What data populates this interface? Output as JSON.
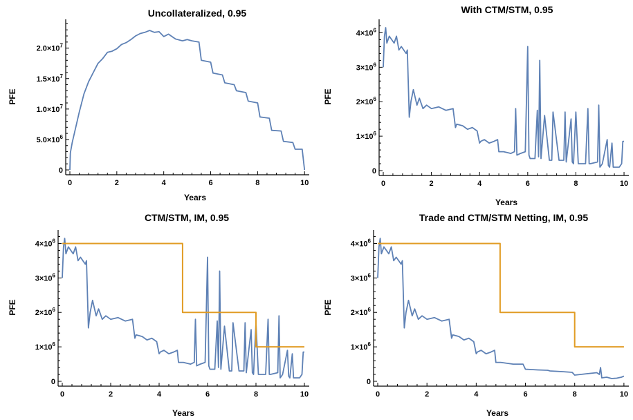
{
  "figure": {
    "colors": {
      "series": "#5E81B5",
      "limit": "#E19C24",
      "axis": "#000000",
      "background": "#FFFFFF"
    }
  },
  "chart_data": [
    {
      "type": "line",
      "title": "Uncollateralized, 0.95",
      "xlabel": "Years",
      "ylabel": "PFE",
      "xlim": [
        0,
        10.2
      ],
      "ylim": [
        0,
        24500000
      ],
      "xticks": [
        0,
        2,
        4,
        6,
        8,
        10
      ],
      "xtick_labels": [
        "0",
        "2",
        "4",
        "6",
        "8",
        "10"
      ],
      "yticks": [
        {
          "value": 0,
          "mant": "0",
          "exp": ""
        },
        {
          "value": 5000000,
          "mant": "5.0×10",
          "exp": "6"
        },
        {
          "value": 10000000,
          "mant": "1.0×10",
          "exp": "7"
        },
        {
          "value": 15000000,
          "mant": "1.5×10",
          "exp": "7"
        },
        {
          "value": 20000000,
          "mant": "2.0×10",
          "exp": "7"
        }
      ],
      "series": [
        {
          "x": [
            0,
            0.02,
            0.1,
            0.25,
            0.4,
            0.6,
            0.8,
            1.0,
            1.2,
            1.4,
            1.6,
            1.8,
            2.0,
            2.2,
            2.4,
            2.6,
            2.8,
            3.0,
            3.2,
            3.4,
            3.6,
            3.8,
            4.0,
            4.2,
            4.5,
            4.8,
            5.0,
            5.2,
            5.5,
            5.6,
            6.0,
            6.1,
            6.5,
            6.6,
            7.0,
            7.1,
            7.5,
            7.6,
            8.0,
            8.1,
            8.5,
            8.6,
            9.0,
            9.1,
            9.5,
            9.6,
            9.9,
            10.0
          ],
          "y": [
            0,
            2800000,
            4500000,
            7000000,
            9500000,
            12500000,
            14500000,
            16000000,
            17500000,
            18300000,
            19300000,
            19500000,
            19900000,
            20600000,
            20900000,
            21400000,
            22000000,
            22400000,
            22600000,
            22900000,
            22600000,
            22700000,
            21900000,
            22300000,
            21500000,
            21200000,
            21400000,
            21200000,
            21000000,
            18000000,
            17700000,
            15900000,
            15600000,
            14300000,
            14000000,
            13000000,
            12700000,
            11300000,
            11000000,
            8700000,
            8500000,
            6500000,
            6400000,
            4700000,
            4500000,
            3400000,
            3400000,
            0
          ]
        }
      ]
    },
    {
      "type": "line",
      "title": "With CTM/STM, 0.95",
      "xlabel": "Years",
      "ylabel": "PFE",
      "xlim": [
        0,
        10.2
      ],
      "ylim": [
        0,
        4350000
      ],
      "xticks": [
        0,
        2,
        4,
        6,
        8,
        10
      ],
      "xtick_labels": [
        "0",
        "2",
        "4",
        "6",
        "8",
        "10"
      ],
      "yticks": [
        {
          "value": 0,
          "mant": "0",
          "exp": ""
        },
        {
          "value": 1000000,
          "mant": "1×10",
          "exp": "6"
        },
        {
          "value": 2000000,
          "mant": "2×10",
          "exp": "6"
        },
        {
          "value": 3000000,
          "mant": "3×10",
          "exp": "6"
        },
        {
          "value": 4000000,
          "mant": "4×10",
          "exp": "6"
        }
      ],
      "series": [
        {
          "x": [
            0,
            0.05,
            0.1,
            0.15,
            0.25,
            0.35,
            0.45,
            0.55,
            0.65,
            0.75,
            0.85,
            0.95,
            1.0,
            1.08,
            1.15,
            1.25,
            1.4,
            1.5,
            1.65,
            1.8,
            2.0,
            2.3,
            2.6,
            2.9,
            3.0,
            3.05,
            3.3,
            3.5,
            3.7,
            3.9,
            4.0,
            4.05,
            4.2,
            4.4,
            4.6,
            4.75,
            4.8,
            5.0,
            5.3,
            5.45,
            5.5,
            5.55,
            5.7,
            5.9,
            6.0,
            6.05,
            6.1,
            6.3,
            6.4,
            6.45,
            6.5,
            6.55,
            6.7,
            6.9,
            7.0,
            7.05,
            7.3,
            7.5,
            7.55,
            7.6,
            7.8,
            7.85,
            7.9,
            8.0,
            8.1,
            8.4,
            8.5,
            8.55,
            8.6,
            8.9,
            8.95,
            9.0,
            9.05,
            9.1,
            9.3,
            9.35,
            9.4,
            9.5,
            9.55,
            9.6,
            9.8,
            9.9,
            9.95,
            10.0
          ],
          "y": [
            3000000,
            3900000,
            4150000,
            3700000,
            3900000,
            3800000,
            3700000,
            3900000,
            3500000,
            3600000,
            3500000,
            3400000,
            3500000,
            1550000,
            2000000,
            2350000,
            1900000,
            2100000,
            1800000,
            1900000,
            1800000,
            1850000,
            1750000,
            1800000,
            1250000,
            1350000,
            1300000,
            1200000,
            1250000,
            1150000,
            800000,
            850000,
            900000,
            800000,
            850000,
            900000,
            550000,
            550000,
            500000,
            550000,
            1800000,
            450000,
            500000,
            550000,
            3600000,
            450000,
            350000,
            350000,
            1750000,
            400000,
            3200000,
            350000,
            1600000,
            300000,
            300000,
            1700000,
            300000,
            300000,
            1700000,
            250000,
            1500000,
            250000,
            200000,
            1700000,
            200000,
            200000,
            1800000,
            200000,
            200000,
            250000,
            1900000,
            100000,
            150000,
            200000,
            900000,
            150000,
            100000,
            800000,
            100000,
            100000,
            100000,
            200000,
            850000,
            850000
          ]
        }
      ]
    },
    {
      "type": "line",
      "title": "CTM/STM, IM, 0.95",
      "xlabel": "Years",
      "ylabel": "PFE",
      "xlim": [
        0,
        10.2
      ],
      "ylim": [
        0,
        4350000
      ],
      "xticks": [
        0,
        2,
        4,
        6,
        8,
        10
      ],
      "xtick_labels": [
        "0",
        "2",
        "4",
        "6",
        "8",
        "10"
      ],
      "yticks": [
        {
          "value": 0,
          "mant": "0",
          "exp": ""
        },
        {
          "value": 1000000,
          "mant": "1×10",
          "exp": "6"
        },
        {
          "value": 2000000,
          "mant": "2×10",
          "exp": "6"
        },
        {
          "value": 3000000,
          "mant": "3×10",
          "exp": "6"
        },
        {
          "value": 4000000,
          "mant": "4×10",
          "exp": "6"
        }
      ],
      "series": [
        {
          "x": [
            0,
            0.05,
            0.1,
            0.15,
            0.25,
            0.35,
            0.45,
            0.55,
            0.65,
            0.75,
            0.85,
            0.95,
            1.0,
            1.08,
            1.15,
            1.25,
            1.4,
            1.5,
            1.65,
            1.8,
            2.0,
            2.3,
            2.6,
            2.9,
            3.0,
            3.05,
            3.3,
            3.5,
            3.7,
            3.9,
            4.0,
            4.05,
            4.2,
            4.4,
            4.6,
            4.75,
            4.8,
            5.0,
            5.3,
            5.45,
            5.5,
            5.55,
            5.7,
            5.9,
            6.0,
            6.05,
            6.1,
            6.3,
            6.4,
            6.45,
            6.5,
            6.55,
            6.7,
            6.9,
            7.0,
            7.05,
            7.3,
            7.5,
            7.55,
            7.6,
            7.8,
            7.85,
            7.9,
            8.0,
            8.1,
            8.4,
            8.5,
            8.55,
            8.6,
            8.9,
            8.95,
            9.0,
            9.05,
            9.1,
            9.3,
            9.35,
            9.4,
            9.5,
            9.55,
            9.6,
            9.8,
            9.9,
            9.95,
            10.0
          ],
          "y": [
            3000000,
            3900000,
            4150000,
            3700000,
            3900000,
            3800000,
            3700000,
            3900000,
            3500000,
            3600000,
            3500000,
            3400000,
            3500000,
            1550000,
            2000000,
            2350000,
            1900000,
            2100000,
            1800000,
            1900000,
            1800000,
            1850000,
            1750000,
            1800000,
            1250000,
            1350000,
            1300000,
            1200000,
            1250000,
            1150000,
            800000,
            850000,
            900000,
            800000,
            850000,
            900000,
            550000,
            550000,
            500000,
            550000,
            1800000,
            450000,
            500000,
            550000,
            3600000,
            450000,
            350000,
            350000,
            1750000,
            400000,
            3200000,
            350000,
            1600000,
            300000,
            300000,
            1700000,
            300000,
            300000,
            1700000,
            250000,
            1500000,
            250000,
            200000,
            1700000,
            200000,
            200000,
            1800000,
            200000,
            200000,
            250000,
            1900000,
            100000,
            150000,
            200000,
            900000,
            150000,
            100000,
            800000,
            100000,
            100000,
            100000,
            200000,
            850000,
            850000
          ]
        },
        {
          "x": [
            0,
            4.97,
            4.97,
            8.0,
            8.0,
            10.0
          ],
          "y": [
            4000000,
            4000000,
            2000000,
            2000000,
            1000000,
            1000000
          ]
        }
      ]
    },
    {
      "type": "line",
      "title": "Trade and CTM/STM Netting, IM, 0.95",
      "xlabel": "Years",
      "ylabel": "PFE",
      "xlim": [
        0,
        10.2
      ],
      "ylim": [
        0,
        4350000
      ],
      "xticks": [
        0,
        2,
        4,
        6,
        8,
        10
      ],
      "xtick_labels": [
        "0",
        "2",
        "4",
        "6",
        "8",
        "10"
      ],
      "yticks": [
        {
          "value": 0,
          "mant": "0",
          "exp": ""
        },
        {
          "value": 1000000,
          "mant": "1×10",
          "exp": "6"
        },
        {
          "value": 2000000,
          "mant": "2×10",
          "exp": "6"
        },
        {
          "value": 3000000,
          "mant": "3×10",
          "exp": "6"
        },
        {
          "value": 4000000,
          "mant": "4×10",
          "exp": "6"
        }
      ],
      "series": [
        {
          "x": [
            0,
            0.05,
            0.1,
            0.15,
            0.25,
            0.35,
            0.45,
            0.55,
            0.65,
            0.75,
            0.85,
            0.95,
            1.0,
            1.08,
            1.15,
            1.25,
            1.4,
            1.5,
            1.65,
            1.8,
            2.0,
            2.3,
            2.6,
            2.9,
            3.0,
            3.05,
            3.3,
            3.5,
            3.7,
            3.9,
            4.0,
            4.05,
            4.2,
            4.4,
            4.6,
            4.75,
            4.8,
            5.0,
            5.5,
            5.9,
            6.0,
            6.5,
            6.9,
            7.0,
            7.5,
            7.9,
            8.0,
            8.5,
            8.9,
            9.0,
            9.05,
            9.1,
            9.3,
            9.5,
            9.7,
            9.9,
            10.0
          ],
          "y": [
            3000000,
            3900000,
            4150000,
            3700000,
            3900000,
            3800000,
            3700000,
            3900000,
            3500000,
            3600000,
            3500000,
            3400000,
            3500000,
            1550000,
            2000000,
            2350000,
            1900000,
            2100000,
            1800000,
            1900000,
            1800000,
            1850000,
            1750000,
            1800000,
            1250000,
            1350000,
            1300000,
            1200000,
            1250000,
            1150000,
            800000,
            850000,
            900000,
            800000,
            850000,
            900000,
            550000,
            550000,
            500000,
            500000,
            350000,
            330000,
            320000,
            300000,
            280000,
            260000,
            180000,
            220000,
            250000,
            200000,
            400000,
            100000,
            120000,
            80000,
            90000,
            120000,
            150000
          ]
        },
        {
          "x": [
            0,
            4.97,
            4.97,
            8.0,
            8.0,
            10.0
          ],
          "y": [
            4000000,
            4000000,
            2000000,
            2000000,
            1000000,
            1000000
          ]
        }
      ]
    }
  ]
}
